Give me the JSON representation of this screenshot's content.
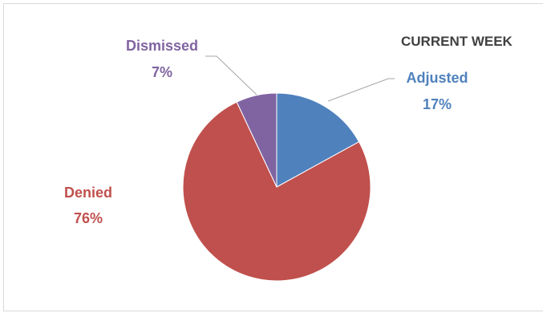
{
  "chart_data": {
    "type": "pie",
    "title": "CURRENT WEEK",
    "slices": [
      {
        "name": "Adjusted",
        "value": 17,
        "value_label": "17%",
        "color": "#4f81bd"
      },
      {
        "name": "Denied",
        "value": 76,
        "value_label": "76%",
        "color": "#c0504d"
      },
      {
        "name": "Dismissed",
        "value": 7,
        "value_label": "7%",
        "color": "#8064a2"
      }
    ],
    "leader_line_color": "#a6a6a6"
  }
}
